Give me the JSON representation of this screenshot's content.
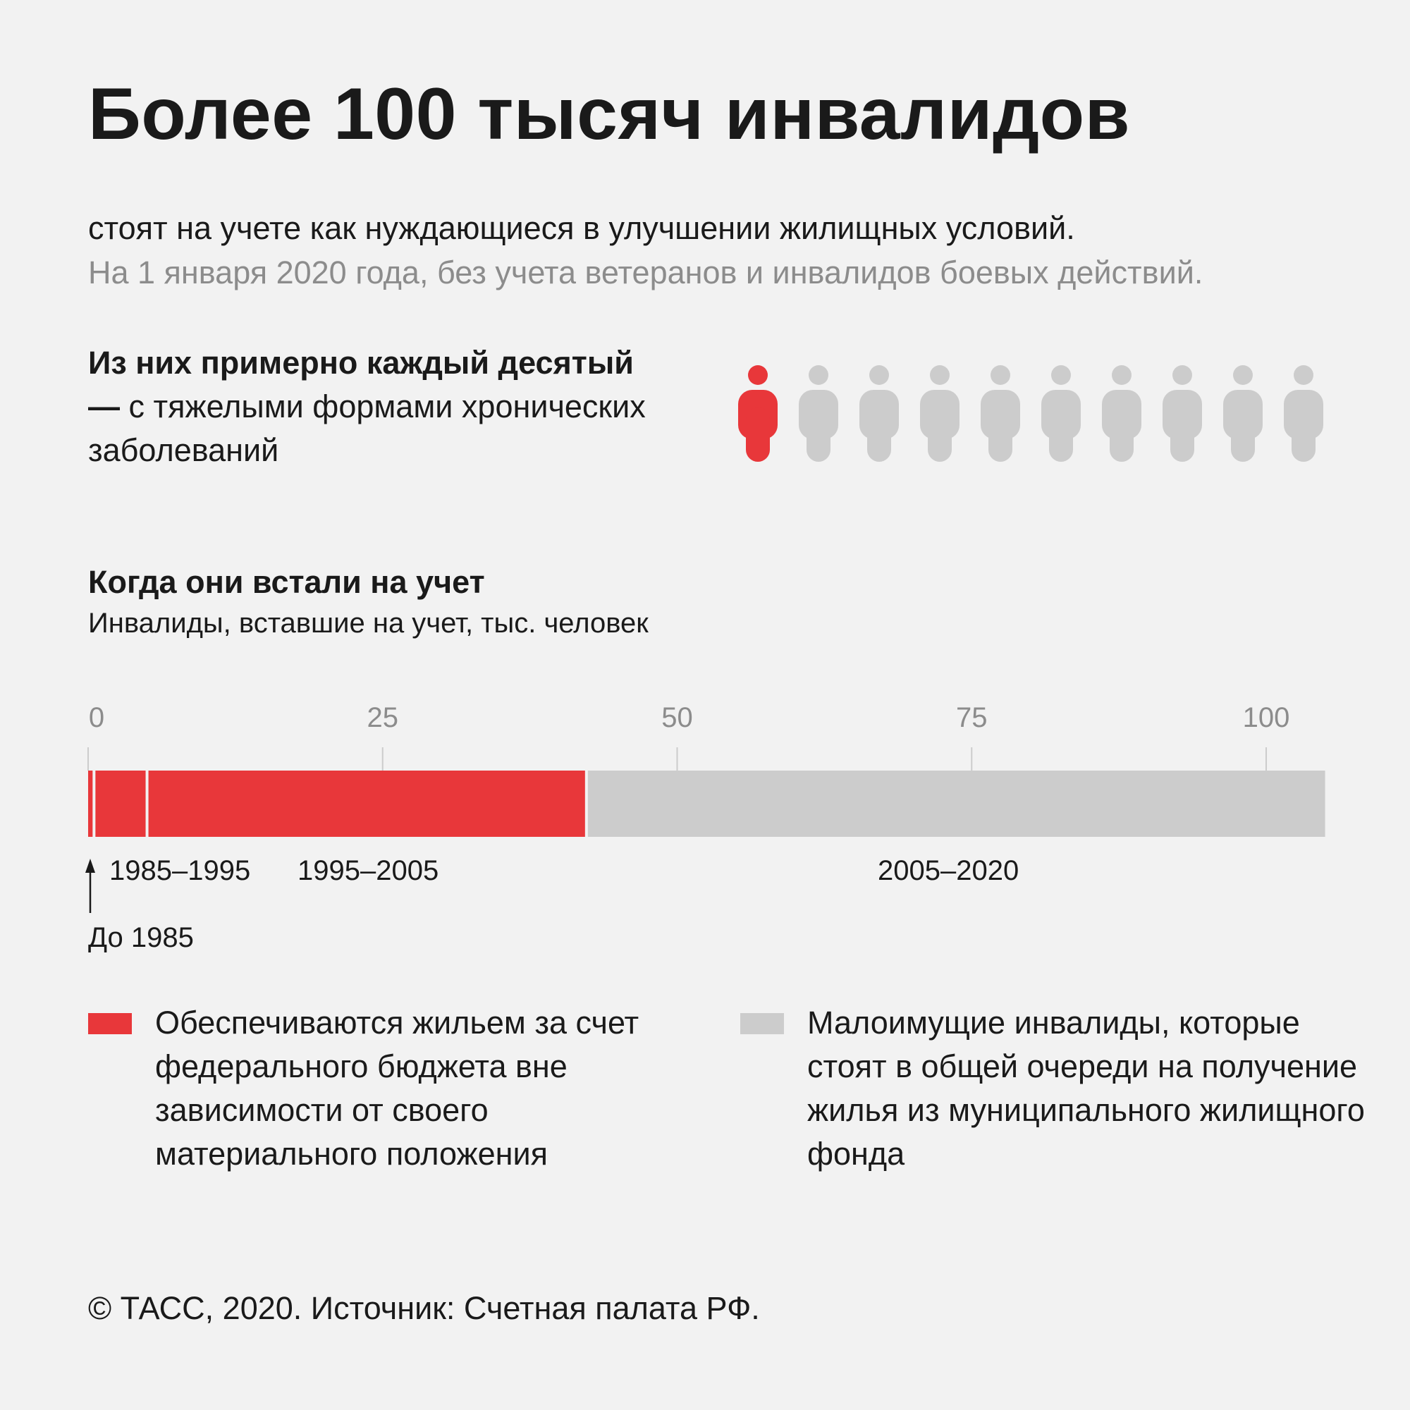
{
  "title": "Более 100 тысяч инвалидов",
  "subtitle": "стоят на учете как нуждающиеся в улучшении жилищных условий.",
  "note": "На 1 января 2020 года, без учета ветеранов и инвалидов боевых действий.",
  "intro": {
    "bold_part": "Из них примерно каждый десятый —",
    "rest_part": " с тяжелыми формами хронических заболеваний",
    "highlighted_count": 1,
    "total_count": 10,
    "highlight_color": "#e8373a",
    "base_color": "#cccccc",
    "icon": "person-icon"
  },
  "section": {
    "title": "Когда они встали на учет",
    "subtitle": "Инвалиды, вставшие на учет, тыс. человек"
  },
  "chart_data": {
    "type": "bar",
    "orientation": "horizontal-stacked",
    "unit": "тыс. человек",
    "xlim": [
      0,
      105
    ],
    "ticks": [
      0,
      25,
      50,
      75,
      100
    ],
    "segments": [
      {
        "label": "До 1985",
        "value": 0.5,
        "color": "#e8373a"
      },
      {
        "label": "1985–1995",
        "value": 4.5,
        "color": "#e8373a"
      },
      {
        "label": "1995–2005",
        "value": 37.3,
        "color": "#e8373a"
      },
      {
        "label": "2005–2020",
        "value": 62.7,
        "color": "#cccccc"
      }
    ]
  },
  "legend": [
    {
      "color": "#e8373a",
      "text": "Обеспечиваются жильем за счет федерального бюджета вне зависимости от своего материального положения"
    },
    {
      "color": "#cccccc",
      "text": "Малоимущие инвалиды, которые стоят в общей очереди на получение жилья из муници­пального жилищного фонда"
    }
  ],
  "footer": "© ТАСС, 2020. Источник: Счетная палата РФ."
}
